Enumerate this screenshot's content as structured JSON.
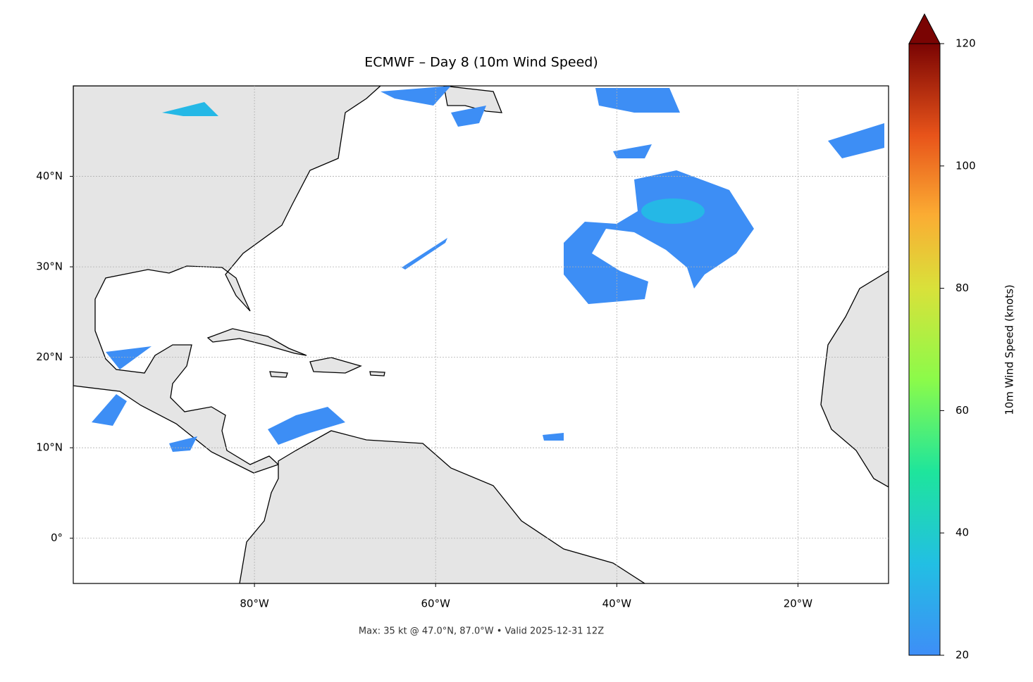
{
  "title": "ECMWF – Day 8 (10m Wind Speed)",
  "footer": "Max: 35 kt @ 47.0°N, 87.0°W • Valid 2025-12-31 12Z",
  "map": {
    "xlim": [
      -100,
      -10
    ],
    "ylim": [
      -5,
      50
    ],
    "xticks": [
      {
        "value": -80,
        "label": "80°W"
      },
      {
        "value": -60,
        "label": "60°W"
      },
      {
        "value": -40,
        "label": "40°W"
      },
      {
        "value": -20,
        "label": "20°W"
      }
    ],
    "yticks": [
      {
        "value": 0,
        "label": "0°"
      },
      {
        "value": 10,
        "label": "10°N"
      },
      {
        "value": 20,
        "label": "20°N"
      },
      {
        "value": 30,
        "label": "30°N"
      },
      {
        "value": 40,
        "label": "40°N"
      }
    ],
    "grid": true
  },
  "colorbar": {
    "label": "10m Wind Speed (knots)",
    "lim": [
      20,
      120
    ],
    "ticks": [
      20,
      40,
      60,
      80,
      100,
      120
    ],
    "extend": "max"
  }
}
